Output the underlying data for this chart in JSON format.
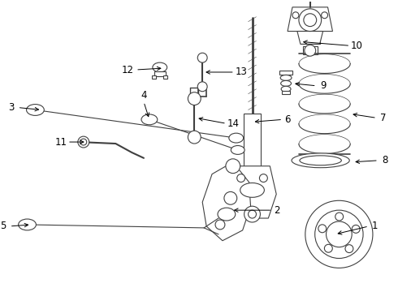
{
  "background_color": "#ffffff",
  "line_color": "#404040",
  "text_color": "#000000",
  "label_fontsize": 8.5,
  "fig_width": 4.9,
  "fig_height": 3.6,
  "dpi": 100
}
